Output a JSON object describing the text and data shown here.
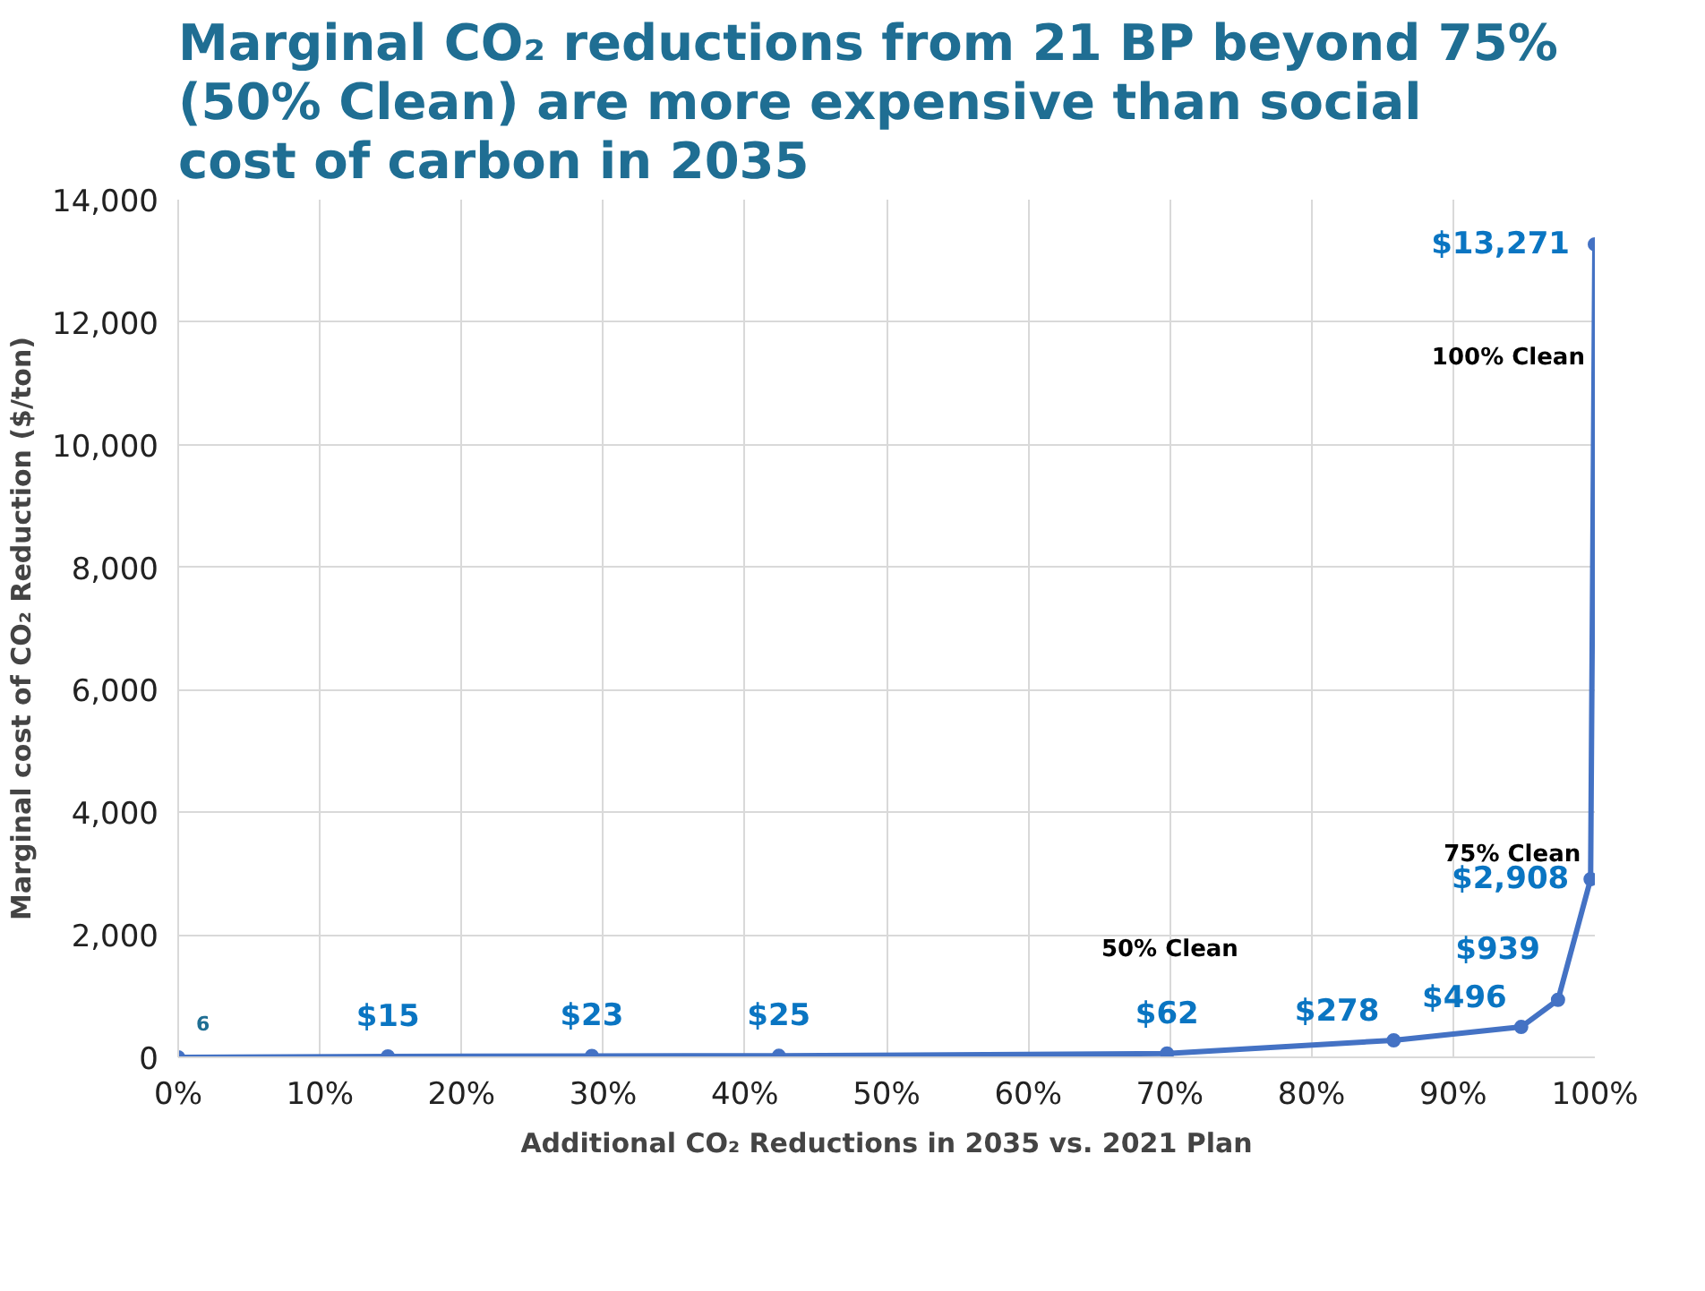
{
  "chart_data": {
    "type": "line",
    "title": "Marginal CO₂ reductions from 21 BP beyond 75% (50% Clean) are more expensive than social cost of carbon in 2035",
    "xlabel": "Additional CO₂ Reductions in 2035 vs. 2021 Plan",
    "ylabel": "Marginal cost of CO₂ Reduction ($/ton)",
    "x": [
      0,
      14.8,
      29.2,
      42.4,
      69.8,
      85.8,
      94.8,
      97.4,
      99.7,
      100
    ],
    "series": [
      {
        "color": "#4472c4",
        "values": [
          0,
          15,
          23,
          25,
          62,
          278,
          496,
          939,
          2908,
          13271
        ],
        "value_labels": [
          null,
          "$15",
          "$23",
          "$25",
          "$62",
          "$278",
          "$496",
          "$939",
          "$2,908",
          "$13,271"
        ]
      }
    ],
    "xlim": [
      0,
      100
    ],
    "xticks": [
      {
        "value": 0,
        "label": "0%"
      },
      {
        "value": 10,
        "label": "10%"
      },
      {
        "value": 20,
        "label": "20%"
      },
      {
        "value": 30,
        "label": "30%"
      },
      {
        "value": 40,
        "label": "40%"
      },
      {
        "value": 50,
        "label": "50%"
      },
      {
        "value": 60,
        "label": "60%"
      },
      {
        "value": 70,
        "label": "70%"
      },
      {
        "value": 80,
        "label": "80%"
      },
      {
        "value": 90,
        "label": "90%"
      },
      {
        "value": 100,
        "label": "100%"
      }
    ],
    "ylim": [
      0,
      14000
    ],
    "yticks": [
      {
        "value": 0,
        "label": "0"
      },
      {
        "value": 2000,
        "label": "2,000"
      },
      {
        "value": 4000,
        "label": "4,000"
      },
      {
        "value": 6000,
        "label": "6,000"
      },
      {
        "value": 8000,
        "label": "8,000"
      },
      {
        "value": 10000,
        "label": "10,000"
      },
      {
        "value": 12000,
        "label": "12,000"
      },
      {
        "value": 14000,
        "label": "14,000"
      }
    ],
    "annotations": [
      "50% Clean",
      "75% Clean",
      "100% Clean",
      "6"
    ],
    "grid": true,
    "marker": "circle",
    "line_style": "solid"
  }
}
